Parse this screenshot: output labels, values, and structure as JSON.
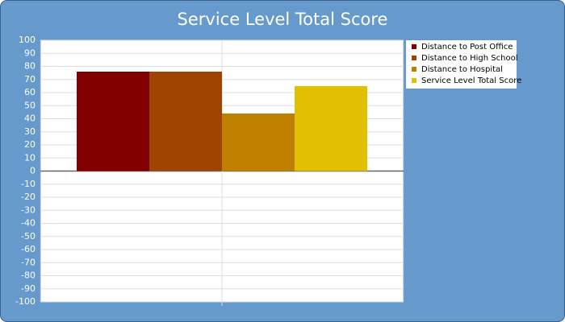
{
  "chart_data": {
    "type": "bar",
    "title": "Service Level Total Score",
    "categories": [
      null
    ],
    "series": [
      {
        "name": "Distance to Post Office",
        "color": "#800000",
        "values": [
          76
        ]
      },
      {
        "name": "Distance to High School",
        "color": "#9e4400",
        "values": [
          76
        ]
      },
      {
        "name": "Distance to Hospital",
        "color": "#bf8000",
        "values": [
          44
        ]
      },
      {
        "name": "Service Level Total Score",
        "color": "#e0c000",
        "values": [
          65
        ]
      }
    ],
    "ylim": [
      -100,
      100
    ],
    "yticks": [
      -100,
      -90,
      -80,
      -70,
      -60,
      -50,
      -40,
      -30,
      -20,
      -10,
      0,
      10,
      20,
      30,
      40,
      50,
      60,
      70,
      80,
      90,
      100
    ],
    "grid": true,
    "legend": "right"
  }
}
